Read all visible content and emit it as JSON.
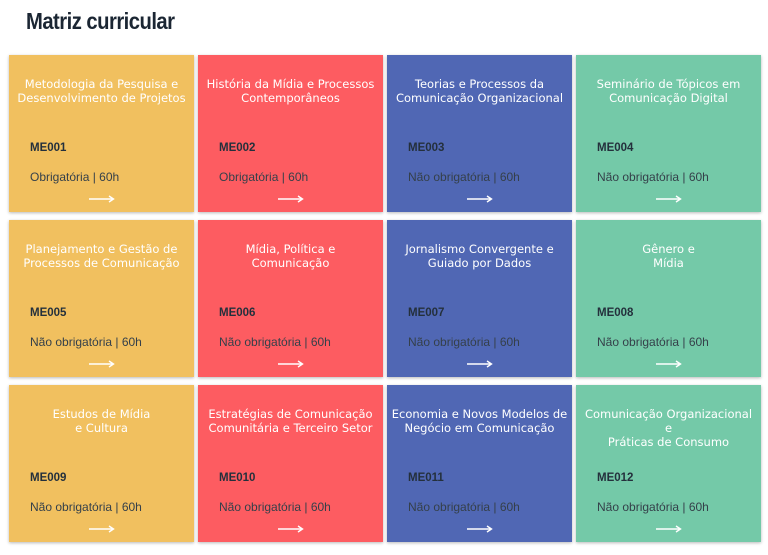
{
  "page": {
    "title": "Matriz curricular"
  },
  "colors": {
    "yellow": "#f1c05f",
    "red": "#fd5c61",
    "blue": "#5067b4",
    "green": "#74c9a8"
  },
  "cards": [
    {
      "title": "Metodologia da Pesquisa e\nDesenvolvimento de Projetos",
      "code": "ME001",
      "type": "Obrigatória | 60h",
      "color": "yellow",
      "icon": "arrow-right-icon"
    },
    {
      "title": "História da Mídia e Processos\nContemporâneos",
      "code": "ME002",
      "type": "Obrigatória | 60h",
      "color": "red",
      "icon": "arrow-right-icon"
    },
    {
      "title": "Teorias e Processos da\nComunicação Organizacional",
      "code": "ME003",
      "type": "Não obrigatória | 60h",
      "color": "blue",
      "icon": "arrow-right-icon"
    },
    {
      "title": "Seminário de Tópicos em\nComunicação Digital",
      "code": "ME004",
      "type": "Não obrigatória | 60h",
      "color": "green",
      "icon": "arrow-right-icon"
    },
    {
      "title": "Planejamento e Gestão de\nProcessos de Comunicação",
      "code": "ME005",
      "type": "Não obrigatória | 60h",
      "color": "yellow",
      "icon": "arrow-right-icon"
    },
    {
      "title": "Mídia, Política e\nComunicação",
      "code": "ME006",
      "type": "Não obrigatória | 60h",
      "color": "red",
      "icon": "arrow-right-icon"
    },
    {
      "title": "Jornalismo Convergente e\nGuiado por Dados",
      "code": "ME007",
      "type": "Não obrigatória | 60h",
      "color": "blue",
      "icon": "arrow-right-icon"
    },
    {
      "title": "Gênero e\nMídia",
      "code": "ME008",
      "type": "Não obrigatória | 60h",
      "color": "green",
      "icon": "arrow-right-icon"
    },
    {
      "title": "Estudos de Mídia\ne Cultura",
      "code": "ME009",
      "type": "Não obrigatória | 60h",
      "color": "yellow",
      "icon": "arrow-right-icon"
    },
    {
      "title": "Estratégias de Comunicação\nComunitária e Terceiro Setor",
      "code": "ME010",
      "type": "Não obrigatória | 60h",
      "color": "red",
      "icon": "arrow-right-icon"
    },
    {
      "title": "Economia e Novos Modelos de\nNegócio em Comunicação",
      "code": "ME011",
      "type": "Não obrigatória | 60h",
      "color": "blue",
      "icon": "arrow-right-icon"
    },
    {
      "title": "Comunicação Organizacional e\nPráticas de Consumo",
      "code": "ME012",
      "type": "Não obrigatória | 60h",
      "color": "green",
      "icon": "arrow-right-icon"
    }
  ]
}
